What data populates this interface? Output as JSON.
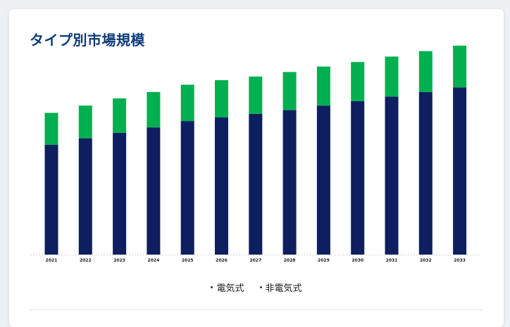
{
  "page": {
    "title": "タイプ別市場規模"
  },
  "chart_data": {
    "type": "bar",
    "stacked": true,
    "categories": [
      "2021",
      "2022",
      "2023",
      "2024",
      "2025",
      "2026",
      "2027",
      "2028",
      "2029",
      "2030",
      "2031",
      "2032",
      "2033"
    ],
    "series": [
      {
        "name": "電気式",
        "color": "#0e1f5f",
        "values": [
          121,
          128,
          134,
          140,
          147,
          151,
          155,
          159,
          164,
          169,
          174,
          179,
          184
        ]
      },
      {
        "name": "非電気式",
        "color": "#00b050",
        "values": [
          35,
          36,
          38,
          39,
          40,
          41,
          41,
          42,
          43,
          43,
          44,
          45,
          46
        ]
      }
    ],
    "ylim": [
      0,
      240
    ],
    "grid": false,
    "legend_position": "bottom"
  }
}
